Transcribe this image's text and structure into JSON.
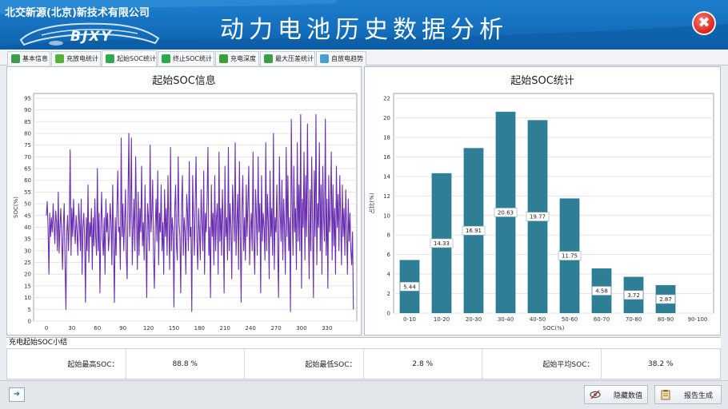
{
  "header": {
    "company": "北交新源(北京)新技术有限公司",
    "title": "动力电池历史数据分析",
    "logo_text": "BJXY",
    "close_glyph": "✖"
  },
  "tabs": [
    {
      "label": "基本信息",
      "icon": "info-icon",
      "color": "#3a9d4a"
    },
    {
      "label": "充放电统计",
      "icon": "charge-icon",
      "color": "#58b03c"
    },
    {
      "label": "起始SOC统计",
      "icon": "bar-chart-icon",
      "color": "#2fa84f",
      "active": true
    },
    {
      "label": "终止SOC统计",
      "icon": "bar-chart-icon",
      "color": "#2fa84f"
    },
    {
      "label": "充电深度",
      "icon": "battery-icon",
      "color": "#3f9e3a"
    },
    {
      "label": "最大压差统计",
      "icon": "voltage-icon",
      "color": "#3d9e47"
    },
    {
      "label": "自放电趋势",
      "icon": "trend-icon",
      "color": "#4a9fd2"
    }
  ],
  "left_chart": {
    "title": "起始SOC信息",
    "ylabel": "SOC(%)"
  },
  "right_chart": {
    "title": "起始SOC统计",
    "ylabel": "占比(%)",
    "xlabel": "SOC(%)"
  },
  "chart_data": [
    {
      "type": "line",
      "title": "起始SOC信息",
      "xlabel": "",
      "ylabel": "SOC(%)",
      "xlim": [
        -15,
        365
      ],
      "ylim": [
        0,
        97
      ],
      "xticks": [
        0,
        30,
        60,
        90,
        120,
        150,
        180,
        210,
        240,
        270,
        300,
        330
      ],
      "yticks": [
        0,
        5,
        10,
        15,
        20,
        25,
        30,
        35,
        40,
        45,
        50,
        55,
        60,
        65,
        70,
        75,
        80,
        85,
        90,
        95
      ],
      "grid": true,
      "color": "#6a2fb0",
      "y": [
        45,
        51,
        40,
        20,
        46,
        36,
        44,
        38,
        50,
        41,
        33,
        47,
        42,
        30,
        55,
        29,
        40,
        48,
        36,
        22,
        41,
        50,
        24,
        5,
        38,
        45,
        30,
        42,
        73,
        28,
        48,
        36,
        52,
        40,
        33,
        45,
        38,
        28,
        50,
        42,
        30,
        52,
        20,
        40,
        46,
        35,
        8,
        44,
        30,
        58,
        25,
        42,
        36,
        48,
        22,
        44,
        32,
        52,
        36,
        28,
        65,
        30,
        46,
        12,
        40,
        55,
        35,
        28,
        44,
        20,
        52,
        38,
        46,
        30,
        36,
        50,
        42,
        24,
        58,
        32,
        8,
        44,
        28,
        48,
        64,
        38,
        40,
        22,
        78,
        36,
        50,
        30,
        42,
        56,
        28,
        18,
        52,
        80,
        36,
        46,
        78,
        24,
        40,
        52,
        30,
        70,
        45,
        22,
        55,
        28,
        48,
        38,
        66,
        32,
        42,
        26,
        58,
        36,
        10,
        50,
        44,
        30,
        75,
        38,
        46,
        60,
        28,
        14,
        40,
        52,
        34,
        64,
        24,
        46,
        38,
        58,
        30,
        42,
        20,
        56,
        36,
        48,
        28,
        62,
        40,
        22,
        74,
        30,
        44,
        38,
        6,
        48,
        58,
        32,
        26,
        70,
        42,
        36,
        12,
        50,
        62,
        28,
        44,
        38,
        20,
        54,
        46,
        30,
        68,
        36,
        40,
        4,
        62,
        44,
        28,
        50,
        70,
        34,
        22,
        48,
        38,
        26,
        56,
        42,
        30,
        64,
        20,
        46,
        38,
        52,
        74,
        28,
        40,
        10,
        58,
        36,
        46,
        24,
        62,
        30,
        44,
        50,
        20,
        72,
        34,
        48,
        28,
        56,
        40,
        12,
        66,
        36,
        44,
        26,
        74,
        30,
        50,
        40,
        18,
        58,
        46,
        34,
        76,
        28,
        42,
        54,
        22,
        68,
        38,
        8,
        48,
        62,
        30,
        44,
        26,
        58,
        36,
        50,
        66,
        24,
        40,
        46,
        30,
        72,
        34,
        20,
        56,
        44,
        28,
        70,
        38,
        50,
        12,
        62,
        34,
        46,
        40,
        26,
        76,
        30,
        54,
        42,
        18,
        64,
        36,
        48,
        28,
        80,
        22,
        44,
        38,
        58,
        30,
        10,
        70,
        46,
        34,
        60,
        26,
        52,
        40,
        20,
        74,
        36,
        62,
        30,
        44,
        4,
        86,
        50,
        28,
        66,
        38,
        48,
        22,
        76,
        34,
        58,
        30,
        88,
        14,
        52,
        40,
        72,
        26,
        62,
        36,
        84,
        44,
        18,
        56,
        30,
        70,
        42,
        10,
        64,
        36,
        88,
        24,
        50,
        40,
        76,
        30,
        58,
        20,
        66,
        44,
        34,
        86,
        28,
        52,
        14,
        62,
        38,
        46,
        72,
        26,
        58,
        32,
        48,
        20,
        66,
        40,
        54,
        30,
        62,
        44,
        24,
        58,
        36,
        48,
        28,
        56,
        40,
        20,
        52,
        34,
        46,
        30,
        24,
        38,
        5
      ]
    },
    {
      "type": "bar",
      "title": "起始SOC统计",
      "xlabel": "SOC(%)",
      "ylabel": "占比(%)",
      "categories": [
        "0-10",
        "10-20",
        "20-30",
        "30-40",
        "40-50",
        "50-60",
        "60-70",
        "70-80",
        "80-90",
        "90-100"
      ],
      "values": [
        5.44,
        14.33,
        16.91,
        20.63,
        19.77,
        11.75,
        4.58,
        3.72,
        2.87,
        0
      ],
      "labels": [
        "5.44",
        "14.33",
        "16.91",
        "20.63",
        "19.77",
        "11.75",
        "4.58",
        "3.72",
        "2.87",
        ""
      ],
      "ylim": [
        0,
        22.5
      ],
      "yticks": [
        0,
        2,
        4,
        6,
        8,
        10,
        12,
        14,
        16,
        18,
        20,
        22
      ],
      "grid": true,
      "color": "#2e7f96"
    }
  ],
  "summary": {
    "heading": "充电起始SOC小结",
    "max_label": "起始最高SOC：",
    "max_value": "88.8 %",
    "min_label": "起始最低SOC：",
    "min_value": "2.8 %",
    "avg_label": "起始平均SOC：",
    "avg_value": "38.2 %"
  },
  "bottom": {
    "left_glyph": "➜",
    "hide_label": "隐藏数值",
    "report_label": "报告生成"
  }
}
